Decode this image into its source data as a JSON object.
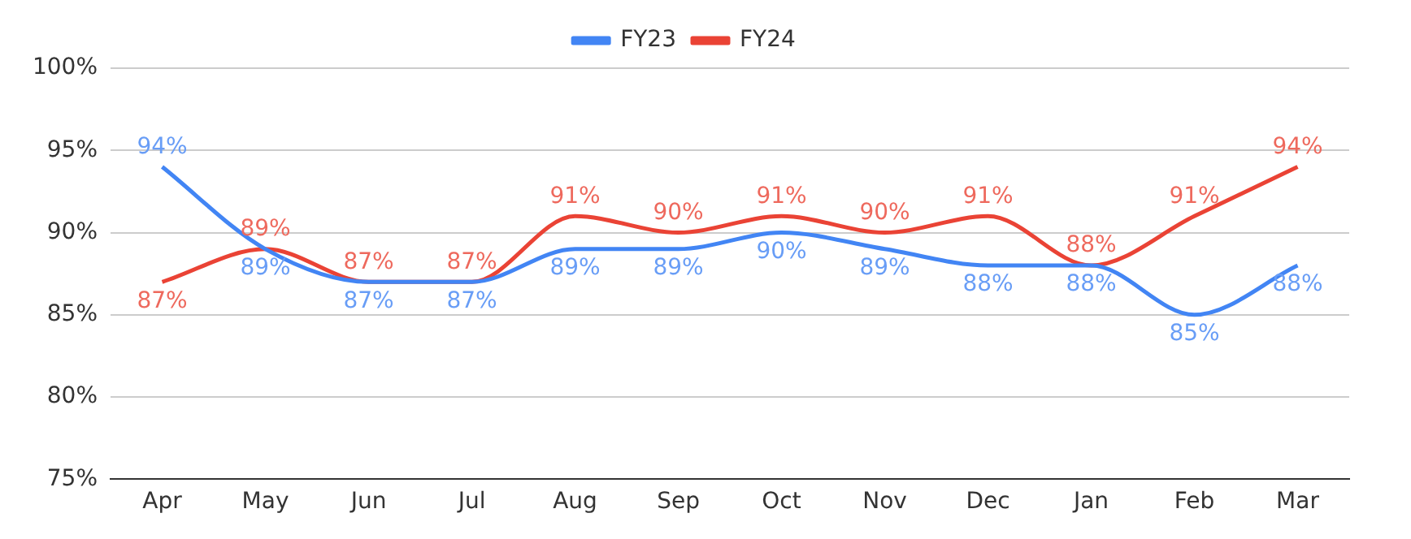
{
  "chart_data": {
    "type": "line",
    "categories": [
      "Apr",
      "May",
      "Jun",
      "Jul",
      "Aug",
      "Sep",
      "Oct",
      "Nov",
      "Dec",
      "Jan",
      "Feb",
      "Mar"
    ],
    "series": [
      {
        "name": "FY23",
        "color": "#4285f4",
        "values": [
          94,
          89,
          87,
          87,
          89,
          89,
          90,
          89,
          88,
          88,
          85,
          88
        ],
        "value_labels": [
          "94%",
          "89%",
          "87%",
          "87%",
          "89%",
          "89%",
          "90%",
          "89%",
          "88%",
          "88%",
          "85%",
          "88%"
        ]
      },
      {
        "name": "FY24",
        "color": "#ea4335",
        "values": [
          87,
          89,
          87,
          87,
          91,
          90,
          91,
          90,
          91,
          88,
          91,
          94
        ],
        "value_labels": [
          "87%",
          "89%",
          "87%",
          "87%",
          "91%",
          "90%",
          "91%",
          "90%",
          "91%",
          "88%",
          "91%",
          "94%"
        ]
      }
    ],
    "ylim": [
      75,
      100
    ],
    "yticks": [
      {
        "value": 75,
        "label": "75%"
      },
      {
        "value": 80,
        "label": "80%"
      },
      {
        "value": 85,
        "label": "85%"
      },
      {
        "value": 90,
        "label": "90%"
      },
      {
        "value": 95,
        "label": "95%"
      },
      {
        "value": 100,
        "label": "100%"
      }
    ],
    "grid": "y",
    "legend": "top",
    "marker": "none",
    "line_style": "solid"
  }
}
